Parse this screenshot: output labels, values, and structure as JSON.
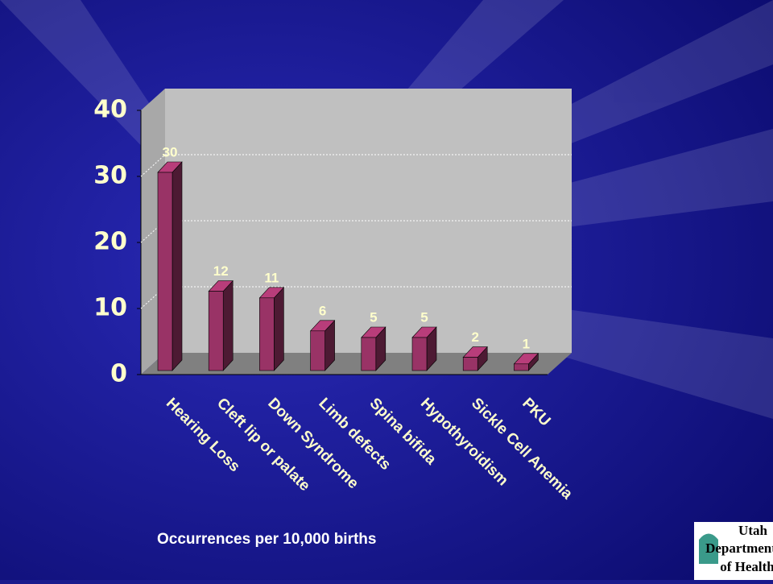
{
  "chart_data": {
    "type": "bar",
    "categories": [
      "Hearing Loss",
      "Cleft lip or palate",
      "Down Syndrome",
      "Limb defects",
      "Spina bifida",
      "Hypothyroidism",
      "Sickle Cell Anemia",
      "PKU"
    ],
    "values": [
      30,
      12,
      11,
      6,
      5,
      5,
      2,
      1
    ],
    "color": "#993366",
    "ylim": [
      0,
      40
    ],
    "yticks": [
      0,
      10,
      20,
      30,
      40
    ],
    "grid": true,
    "xlabel": "Occurrences per 10,000 births"
  },
  "logo": {
    "lines": [
      "Utah",
      "Department",
      "of Health"
    ]
  }
}
